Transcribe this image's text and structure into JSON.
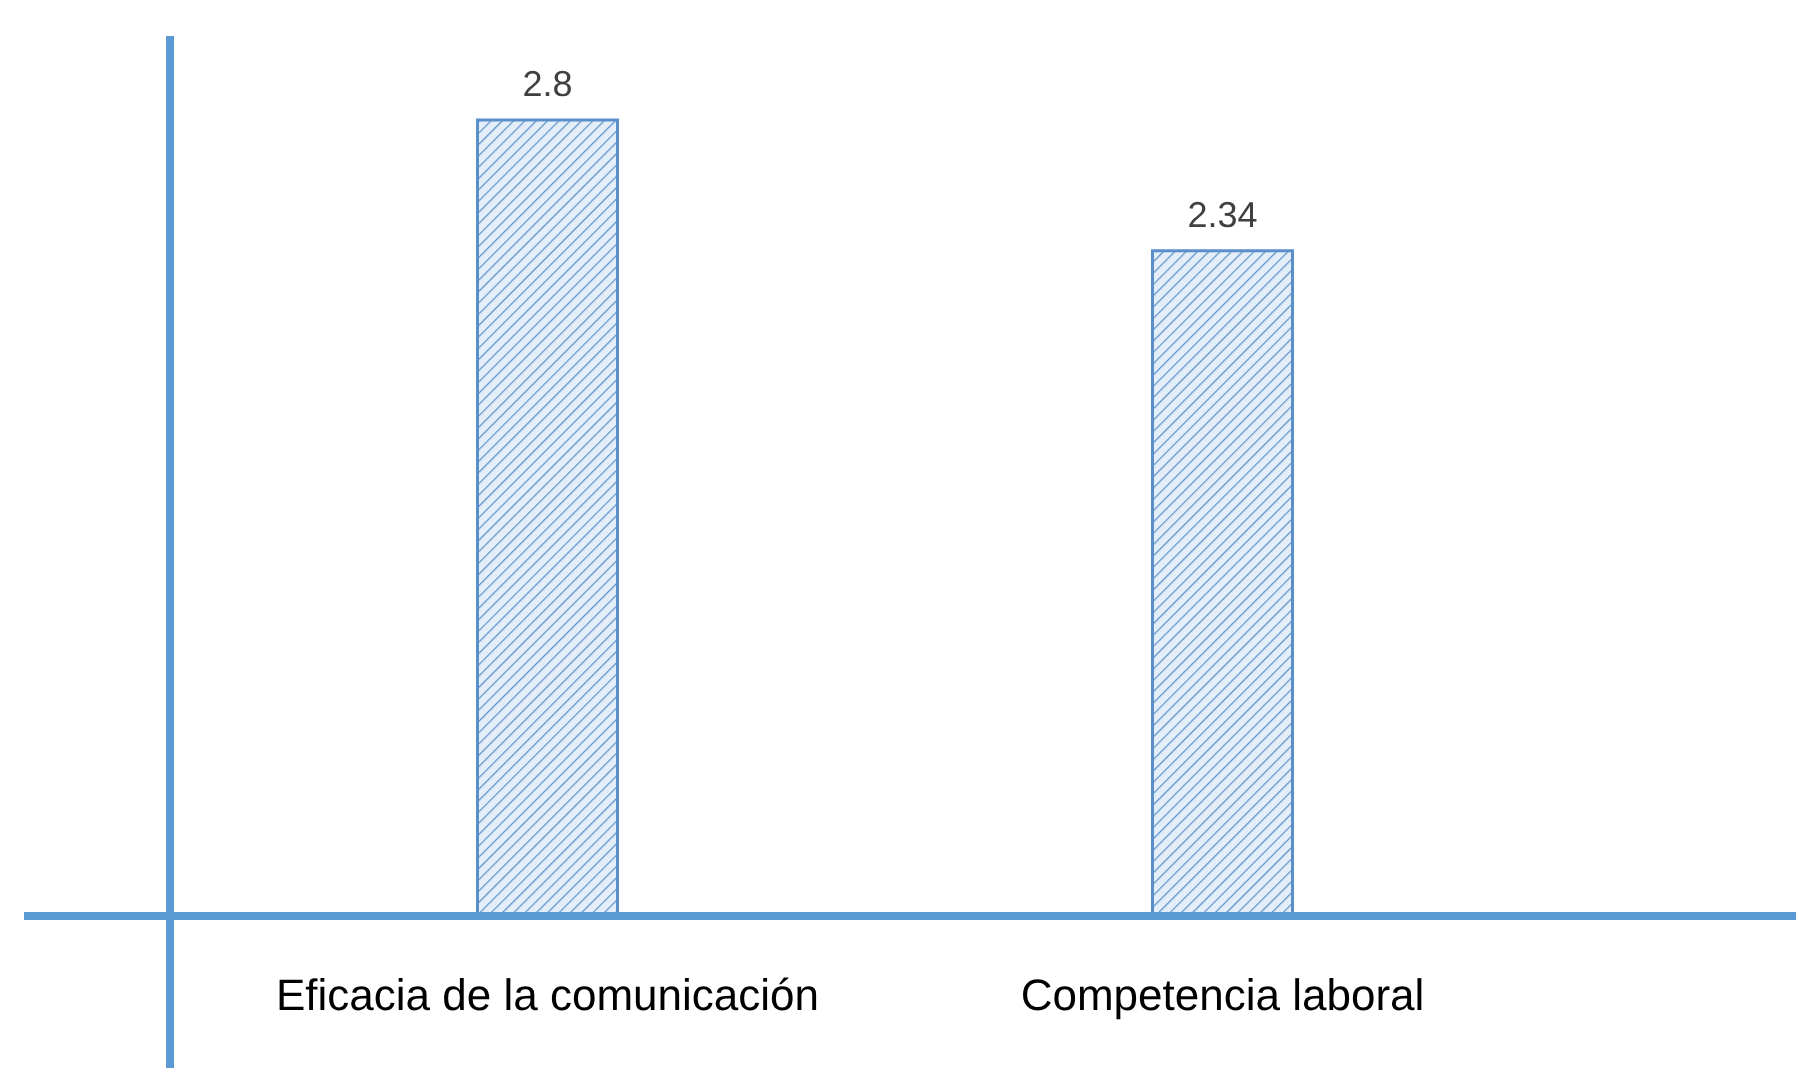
{
  "chart_data": {
    "type": "bar",
    "categories": [
      "Eficacia de la comunicación",
      "Competencia laboral"
    ],
    "values": [
      2.8,
      2.34
    ],
    "color": "#5b8fc9",
    "data_labels": true
  }
}
